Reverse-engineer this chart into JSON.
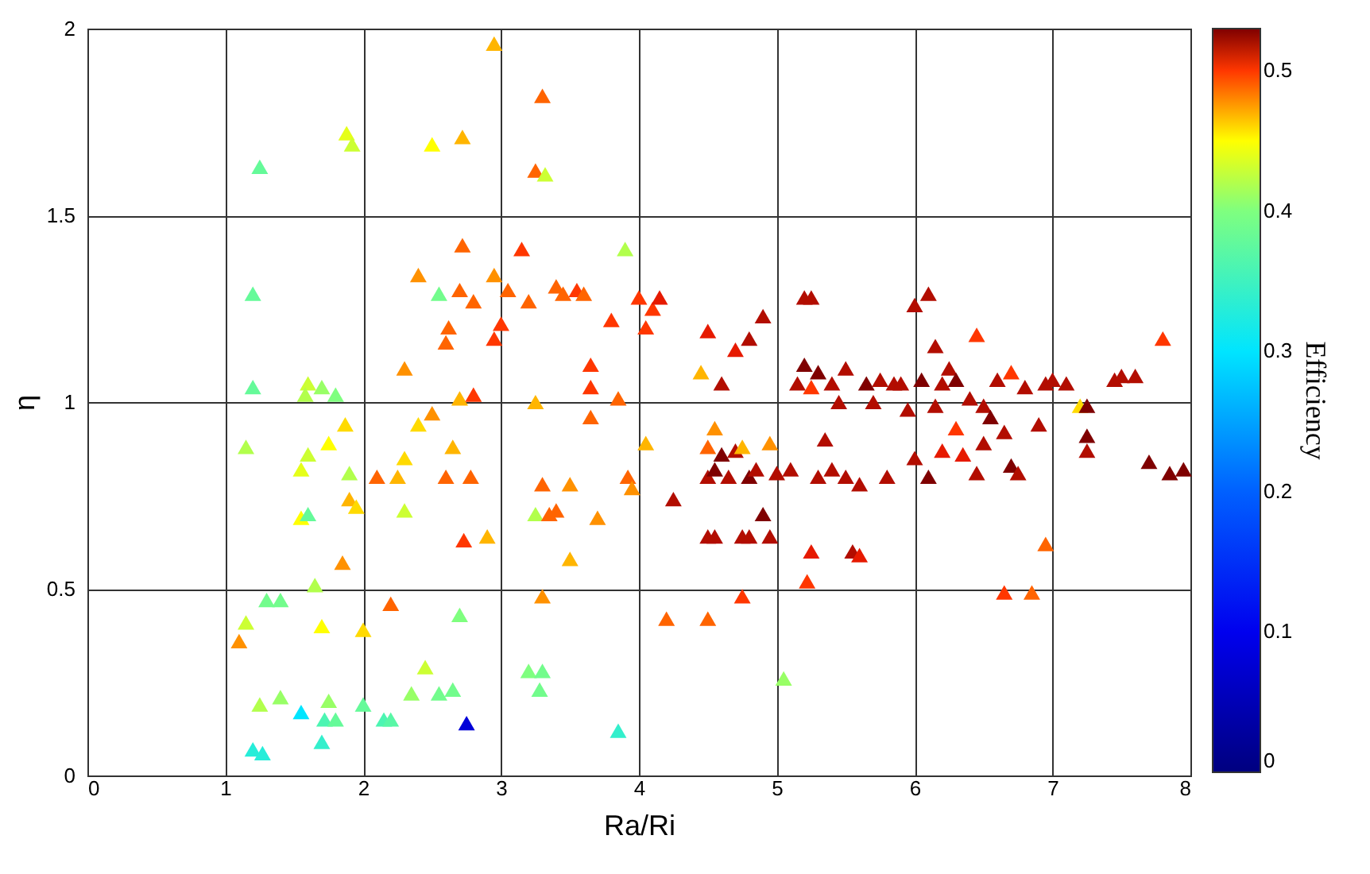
{
  "chart_data": {
    "type": "scatter",
    "xlabel": "Ra/Ri",
    "ylabel": "η",
    "clabel": "Efficiency",
    "marker": "triangle",
    "grid": true,
    "xlim": [
      0,
      8
    ],
    "xticks": [
      0,
      1,
      2,
      3,
      4,
      5,
      6,
      7,
      8
    ],
    "ylim": [
      0,
      2
    ],
    "yticks": [
      {
        "value": 0,
        "label": "0"
      },
      0.5,
      {
        "value": 1,
        "label": "1"
      },
      1.5,
      {
        "value": 2,
        "label": "2"
      }
    ],
    "clim": [
      0,
      0.53
    ],
    "cticks": [
      0,
      0.1,
      0.2,
      0.3,
      0.4,
      0.5
    ],
    "x": [
      1.1,
      1.15,
      1.15,
      1.2,
      1.2,
      1.25,
      1.25,
      1.2,
      1.27,
      1.3,
      1.4,
      1.4,
      1.55,
      1.55,
      1.55,
      1.6,
      1.6,
      1.58,
      1.6,
      1.65,
      1.7,
      1.7,
      1.7,
      1.72,
      1.75,
      1.8,
      1.75,
      1.8,
      1.85,
      1.87,
      1.88,
      1.92,
      1.9,
      1.95,
      1.9,
      2.0,
      2.0,
      2.1,
      2.15,
      2.2,
      2.2,
      2.25,
      2.3,
      2.3,
      2.3,
      2.35,
      2.4,
      2.4,
      2.45,
      2.5,
      2.5,
      2.55,
      2.55,
      2.6,
      2.6,
      2.62,
      2.65,
      2.65,
      2.7,
      2.7,
      2.72,
      2.7,
      2.72,
      2.73,
      2.75,
      2.78,
      2.8,
      2.8,
      2.9,
      2.95,
      2.95,
      2.95,
      3.0,
      3.05,
      3.15,
      3.2,
      3.2,
      3.25,
      3.25,
      3.25,
      3.28,
      3.3,
      3.3,
      3.3,
      3.3,
      3.32,
      3.35,
      3.4,
      3.4,
      3.45,
      3.5,
      3.5,
      3.55,
      3.6,
      3.65,
      3.65,
      3.65,
      3.7,
      3.8,
      3.85,
      3.85,
      3.9,
      3.92,
      3.95,
      4.0,
      4.05,
      4.05,
      4.1,
      4.15,
      4.2,
      4.25,
      4.5,
      4.45,
      4.5,
      4.55,
      4.5,
      4.5,
      4.55,
      4.6,
      4.65,
      4.7,
      4.75,
      4.8,
      4.85,
      4.6,
      4.7,
      4.75,
      4.5,
      4.55,
      4.75,
      4.8,
      4.9,
      4.95,
      4.8,
      4.9,
      4.95,
      5.05,
      5.0,
      5.1,
      5.15,
      5.2,
      5.2,
      5.25,
      5.25,
      5.22,
      5.25,
      5.3,
      5.3,
      5.35,
      5.4,
      5.4,
      5.45,
      5.5,
      5.5,
      5.55,
      5.6,
      5.6,
      5.65,
      5.7,
      5.75,
      5.8,
      5.85,
      5.9,
      5.95,
      6.0,
      6.0,
      6.05,
      6.1,
      6.1,
      6.15,
      6.15,
      6.2,
      6.2,
      6.25,
      6.3,
      6.3,
      6.35,
      6.4,
      6.45,
      6.45,
      6.5,
      6.5,
      6.55,
      6.6,
      6.65,
      6.65,
      6.7,
      6.7,
      6.75,
      6.8,
      6.85,
      6.9,
      6.95,
      6.95,
      7.0,
      7.1,
      7.2,
      7.25,
      7.25,
      7.25,
      7.45,
      7.5,
      7.6,
      7.7,
      7.8,
      7.85,
      7.95
    ],
    "values": [
      0.36,
      0.41,
      0.88,
      1.04,
      1.29,
      1.63,
      0.19,
      0.07,
      0.06,
      0.47,
      0.47,
      0.21,
      0.17,
      0.69,
      0.82,
      0.86,
      1.05,
      1.02,
      0.7,
      0.51,
      0.4,
      1.04,
      0.09,
      0.15,
      0.2,
      0.15,
      0.89,
      1.02,
      0.57,
      0.94,
      1.72,
      1.69,
      0.74,
      0.72,
      0.81,
      0.19,
      0.39,
      0.8,
      0.15,
      0.15,
      0.46,
      0.8,
      0.71,
      0.85,
      1.09,
      0.22,
      1.34,
      0.94,
      0.29,
      1.69,
      0.97,
      1.29,
      0.22,
      1.16,
      0.8,
      1.2,
      0.88,
      0.23,
      1.01,
      1.3,
      1.42,
      0.43,
      1.71,
      0.63,
      0.14,
      0.8,
      1.02,
      1.27,
      0.64,
      1.17,
      1.34,
      1.96,
      1.21,
      1.3,
      1.41,
      0.28,
      1.27,
      0.7,
      1.0,
      1.62,
      0.23,
      1.82,
      0.28,
      0.48,
      0.78,
      1.61,
      0.7,
      1.31,
      0.71,
      1.29,
      0.78,
      0.58,
      1.3,
      1.29,
      1.04,
      1.1,
      0.96,
      0.69,
      1.22,
      1.01,
      0.12,
      1.41,
      0.8,
      0.77,
      1.28,
      1.2,
      0.89,
      1.25,
      1.28,
      0.42,
      0.74,
      0.42,
      1.08,
      1.19,
      0.93,
      0.88,
      0.8,
      0.82,
      0.86,
      0.8,
      0.87,
      0.88,
      0.8,
      0.82,
      1.05,
      1.14,
      0.48,
      0.64,
      0.64,
      0.64,
      0.64,
      0.7,
      0.64,
      1.17,
      1.23,
      0.89,
      0.26,
      0.81,
      0.82,
      1.05,
      1.1,
      1.28,
      1.28,
      1.04,
      0.52,
      0.6,
      0.8,
      1.08,
      0.9,
      1.05,
      0.82,
      1.0,
      1.09,
      0.8,
      0.6,
      0.59,
      0.78,
      1.05,
      1.0,
      1.06,
      0.8,
      1.05,
      1.05,
      0.98,
      0.85,
      1.26,
      1.06,
      1.29,
      0.8,
      0.99,
      1.15,
      0.87,
      1.05,
      1.09,
      0.93,
      1.06,
      0.86,
      1.01,
      1.18,
      0.81,
      0.89,
      0.99,
      0.96,
      1.06,
      0.92,
      0.49,
      1.08,
      0.83,
      0.81,
      1.04,
      0.49,
      0.94,
      1.05,
      0.62,
      1.06,
      1.05,
      0.99,
      0.91,
      0.99,
      0.87,
      1.06,
      1.07,
      1.07,
      0.84,
      1.17,
      0.81,
      0.82
    ],
    "cvalues": [
      0.48,
      0.43,
      0.42,
      0.38,
      0.38,
      0.38,
      0.42,
      0.33,
      0.33,
      0.39,
      0.39,
      0.41,
      0.3,
      0.45,
      0.44,
      0.43,
      0.43,
      0.42,
      0.38,
      0.42,
      0.45,
      0.41,
      0.34,
      0.36,
      0.41,
      0.38,
      0.45,
      0.4,
      0.48,
      0.46,
      0.44,
      0.43,
      0.47,
      0.46,
      0.42,
      0.38,
      0.46,
      0.49,
      0.36,
      0.37,
      0.49,
      0.47,
      0.43,
      0.46,
      0.48,
      0.41,
      0.48,
      0.46,
      0.43,
      0.45,
      0.48,
      0.39,
      0.39,
      0.49,
      0.49,
      0.49,
      0.47,
      0.39,
      0.47,
      0.49,
      0.49,
      0.4,
      0.47,
      0.5,
      0.08,
      0.49,
      0.5,
      0.49,
      0.47,
      0.5,
      0.48,
      0.47,
      0.5,
      0.49,
      0.5,
      0.4,
      0.49,
      0.42,
      0.47,
      0.49,
      0.39,
      0.49,
      0.39,
      0.48,
      0.49,
      0.43,
      0.49,
      0.49,
      0.49,
      0.49,
      0.48,
      0.47,
      0.5,
      0.49,
      0.5,
      0.5,
      0.49,
      0.48,
      0.5,
      0.49,
      0.34,
      0.42,
      0.49,
      0.48,
      0.5,
      0.5,
      0.47,
      0.5,
      0.51,
      0.49,
      0.52,
      0.49,
      0.47,
      0.51,
      0.48,
      0.49,
      0.52,
      0.53,
      0.53,
      0.52,
      0.52,
      0.47,
      0.53,
      0.52,
      0.52,
      0.51,
      0.5,
      0.52,
      0.52,
      0.52,
      0.52,
      0.53,
      0.52,
      0.52,
      0.52,
      0.48,
      0.41,
      0.52,
      0.52,
      0.52,
      0.53,
      0.52,
      0.52,
      0.5,
      0.5,
      0.51,
      0.52,
      0.53,
      0.52,
      0.52,
      0.52,
      0.52,
      0.52,
      0.52,
      0.52,
      0.51,
      0.52,
      0.53,
      0.52,
      0.52,
      0.52,
      0.52,
      0.52,
      0.52,
      0.52,
      0.52,
      0.53,
      0.52,
      0.53,
      0.52,
      0.52,
      0.51,
      0.52,
      0.52,
      0.5,
      0.53,
      0.51,
      0.52,
      0.5,
      0.52,
      0.52,
      0.52,
      0.53,
      0.52,
      0.52,
      0.5,
      0.5,
      0.53,
      0.52,
      0.52,
      0.49,
      0.52,
      0.52,
      0.49,
      0.52,
      0.52,
      0.46,
      0.53,
      0.53,
      0.52,
      0.52,
      0.52,
      0.52,
      0.53,
      0.5,
      0.53,
      0.53
    ]
  }
}
